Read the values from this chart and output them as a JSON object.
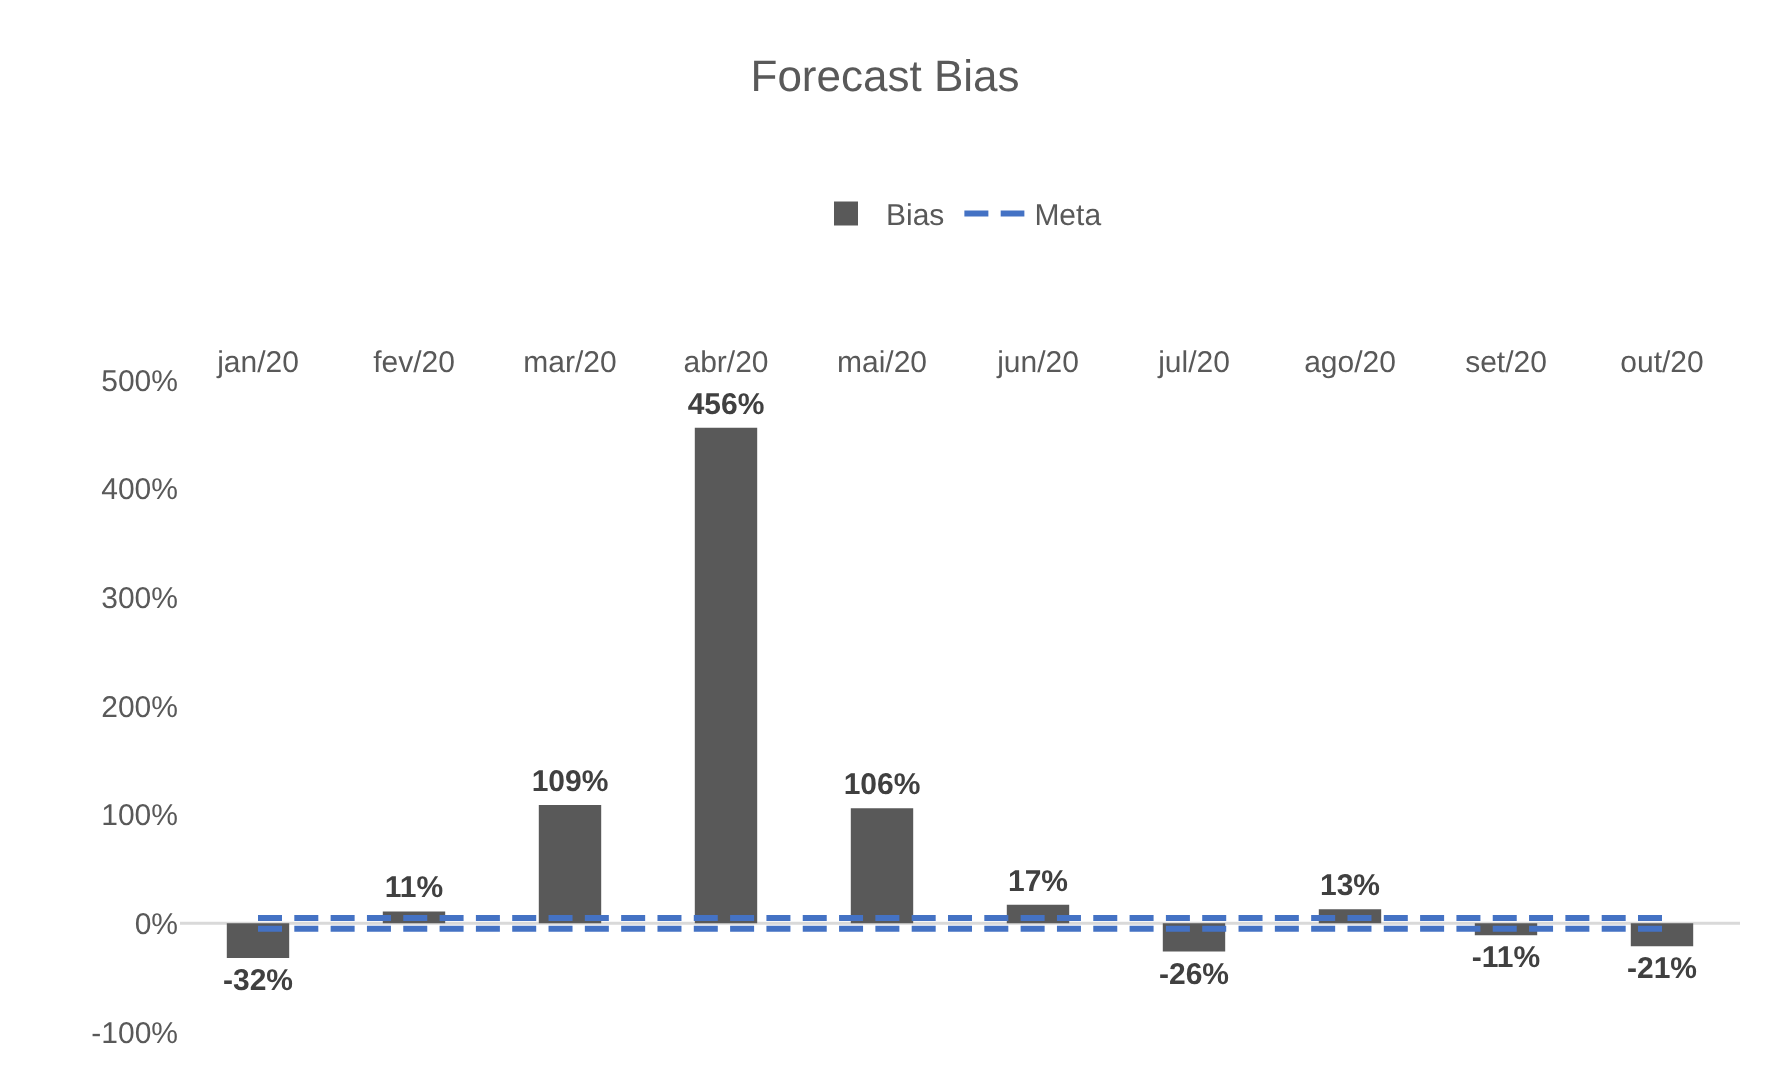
{
  "chart_data": {
    "type": "bar",
    "title": "Forecast Bias",
    "categories": [
      "jan/20",
      "fev/20",
      "mar/20",
      "abr/20",
      "mai/20",
      "jun/20",
      "jul/20",
      "ago/20",
      "set/20",
      "out/20"
    ],
    "series": [
      {
        "name": "Bias",
        "color": "#595959",
        "values": [
          -32,
          11,
          109,
          456,
          106,
          17,
          -26,
          13,
          -11,
          -21
        ],
        "value_labels": [
          "-32%",
          "11%",
          "109%",
          "456%",
          "106%",
          "17%",
          "-26%",
          "13%",
          "-11%",
          "-21%"
        ]
      },
      {
        "name": "Meta",
        "type": "line",
        "color": "#4472c4",
        "line_style": "dashed",
        "values": [
          5,
          5,
          5,
          5,
          5,
          5,
          5,
          5,
          5,
          5
        ]
      },
      {
        "type": "line",
        "color": "#4472c4",
        "line_style": "dashed",
        "values": [
          -5,
          -5,
          -5,
          -5,
          -5,
          -5,
          -5,
          -5,
          -5,
          -5
        ]
      }
    ],
    "ylim": [
      -100,
      500
    ],
    "yticks": [
      {
        "value": -100,
        "label": "-100%"
      },
      {
        "value": 0,
        "label": "0%"
      },
      {
        "value": 100,
        "label": "100%"
      },
      {
        "value": 200,
        "label": "200%"
      },
      {
        "value": 300,
        "label": "300%"
      },
      {
        "value": 400,
        "label": "400%"
      },
      {
        "value": 500,
        "label": "500%"
      }
    ],
    "ref_lines": [
      {
        "axis": "y",
        "value": 0,
        "color": "#d9d9d9"
      }
    ],
    "grid": false,
    "legend": "top",
    "marker": "none"
  }
}
